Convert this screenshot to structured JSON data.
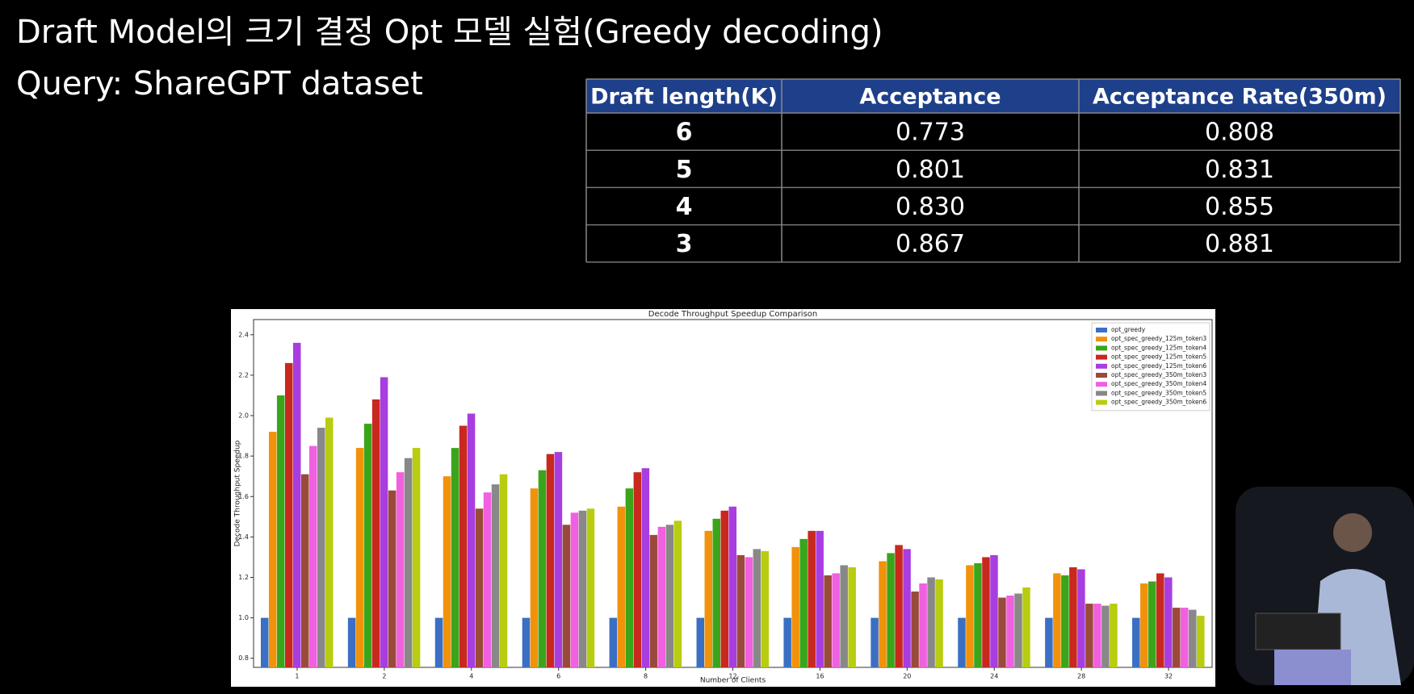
{
  "title": "Draft Model의 크기 결정 Opt 모델 실험(Greedy decoding)",
  "subtitle": "Query: ShareGPT dataset",
  "table": {
    "header": [
      "Draft length(K)",
      "Acceptance",
      "Acceptance Rate(350m)"
    ],
    "rows": [
      [
        "6",
        "0.773",
        "0.808"
      ],
      [
        "5",
        "0.801",
        "0.831"
      ],
      [
        "4",
        "0.830",
        "0.855"
      ],
      [
        "3",
        "0.867",
        "0.881"
      ]
    ]
  },
  "chart_data": {
    "type": "bar",
    "title": "Decode Throughput Speedup Comparison",
    "x_label": "Number of Clients",
    "y_label": "Decode Throughput Speedup",
    "categories": [
      "1",
      "2",
      "4",
      "6",
      "8",
      "12",
      "16",
      "20",
      "24",
      "28",
      "32"
    ],
    "series": [
      {
        "name": "opt_greedy",
        "color": "#3a6fc4",
        "values": [
          1.0,
          1.0,
          1.0,
          1.0,
          1.0,
          1.0,
          1.0,
          1.0,
          1.0,
          1.0,
          1.0
        ]
      },
      {
        "name": "opt_spec_greedy_125m_token3",
        "color": "#f0920a",
        "values": [
          1.92,
          1.84,
          1.7,
          1.64,
          1.55,
          1.43,
          1.35,
          1.28,
          1.26,
          1.22,
          1.17
        ]
      },
      {
        "name": "opt_spec_greedy_125m_token4",
        "color": "#3aa51b",
        "values": [
          2.1,
          1.96,
          1.84,
          1.73,
          1.64,
          1.49,
          1.39,
          1.32,
          1.27,
          1.21,
          1.18
        ]
      },
      {
        "name": "opt_spec_greedy_125m_token5",
        "color": "#c8281e",
        "values": [
          2.26,
          2.08,
          1.95,
          1.81,
          1.72,
          1.53,
          1.43,
          1.36,
          1.3,
          1.25,
          1.22
        ]
      },
      {
        "name": "opt_spec_greedy_125m_token6",
        "color": "#a83de0",
        "values": [
          2.36,
          2.19,
          2.01,
          1.82,
          1.74,
          1.55,
          1.43,
          1.34,
          1.31,
          1.24,
          1.2
        ]
      },
      {
        "name": "opt_spec_greedy_350m_token3",
        "color": "#9a4a3a",
        "values": [
          1.71,
          1.63,
          1.54,
          1.46,
          1.41,
          1.31,
          1.21,
          1.13,
          1.1,
          1.07,
          1.05
        ]
      },
      {
        "name": "opt_spec_greedy_350m_token4",
        "color": "#f060e0",
        "values": [
          1.85,
          1.72,
          1.62,
          1.52,
          1.45,
          1.3,
          1.22,
          1.17,
          1.11,
          1.07,
          1.05
        ]
      },
      {
        "name": "opt_spec_greedy_350m_token5",
        "color": "#888888",
        "values": [
          1.94,
          1.79,
          1.66,
          1.53,
          1.46,
          1.34,
          1.26,
          1.2,
          1.12,
          1.06,
          1.04
        ]
      },
      {
        "name": "opt_spec_greedy_350m_token6",
        "color": "#b8cc10",
        "values": [
          1.99,
          1.84,
          1.71,
          1.54,
          1.48,
          1.33,
          1.25,
          1.19,
          1.15,
          1.07,
          1.01
        ]
      }
    ],
    "ylim": [
      0.755,
      2.475
    ],
    "yticks": [
      0.8,
      {
        "value": 1,
        "label": "1.0"
      },
      1.2,
      1.4,
      1.6,
      1.8,
      {
        "value": 2,
        "label": "2.0"
      },
      2.2,
      2.4
    ],
    "legend": "upper right"
  }
}
